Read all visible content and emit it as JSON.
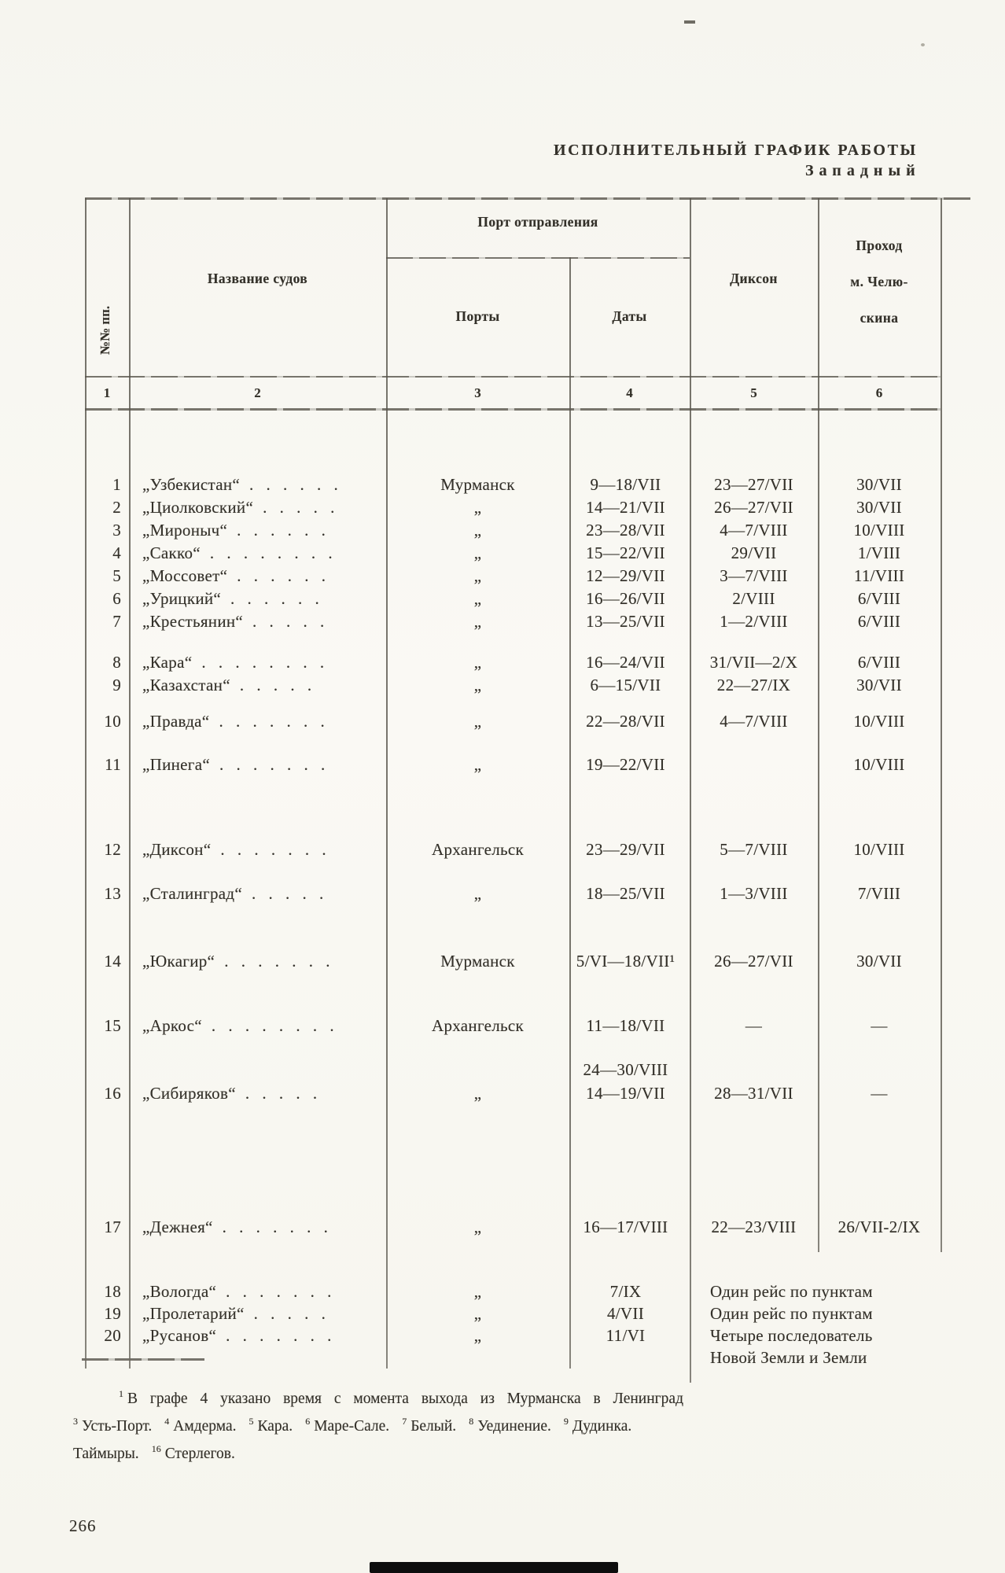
{
  "page": {
    "title_line1": "ИСПОЛНИТЕЛЬНЫЙ ГРАФИК РАБОТЫ",
    "title_line2": "Западный",
    "page_number": "266"
  },
  "table": {
    "header": {
      "rows_label": "№№ пп.",
      "ships": "Название судов",
      "departure_group": "Порт отправления",
      "ports": "Порты",
      "dates": "Даты",
      "dixon": "Диксон",
      "chelyuskin_lines": [
        "Проход",
        "м. Челю-",
        "скина"
      ],
      "column_numbers": [
        "1",
        "2",
        "3",
        "4",
        "5",
        "6"
      ]
    },
    "rows": [
      {
        "n": "1",
        "name": "„Узбекистан“",
        "dots": ". . . . . .",
        "port": "Мурманск",
        "date": "9—18/VII",
        "dixon": "23—27/VII",
        "chel": "30/VII"
      },
      {
        "n": "2",
        "name": "„Циолковский“",
        "dots": ". . . . .",
        "port": "„",
        "date": "14—21/VII",
        "dixon": "26—27/VII",
        "chel": "30/VII"
      },
      {
        "n": "3",
        "name": "„Мироныч“",
        "dots": ". . . . . .",
        "port": "„",
        "date": "23—28/VII",
        "dixon": "4—7/VIII",
        "chel": "10/VIII"
      },
      {
        "n": "4",
        "name": "„Сакко“",
        "dots": ". . . . . . . .",
        "port": "„",
        "date": "15—22/VII",
        "dixon": "29/VII",
        "chel": "1/VIII"
      },
      {
        "n": "5",
        "name": "„Моссовет“",
        "dots": ". . . . . .",
        "port": "„",
        "date": "12—29/VII",
        "dixon": "3—7/VIII",
        "chel": "11/VIII"
      },
      {
        "n": "6",
        "name": "„Урицкий“",
        "dots": ". . . . . .",
        "port": "„",
        "date": "16—26/VII",
        "dixon": "2/VIII",
        "chel": "6/VIII"
      },
      {
        "n": "7",
        "name": "„Крестьянин“",
        "dots": ". . . . .",
        "port": "„",
        "date": "13—25/VII",
        "dixon": "1—2/VIII",
        "chel": "6/VIII"
      },
      {
        "n": "8",
        "name": "„Кара“",
        "dots": ". . . . . . . .",
        "port": "„",
        "date": "16—24/VII",
        "dixon": "31/VII—2/X",
        "chel": "6/VIII"
      },
      {
        "n": "9",
        "name": "„Казахстан“",
        "dots": ". . . . .",
        "port": "„",
        "date": "6—15/VII",
        "dixon": "22—27/IX",
        "chel": "30/VII"
      },
      {
        "n": "10",
        "name": "„Правда“",
        "dots": ". . . . . . .",
        "port": "„",
        "date": "22—28/VII",
        "dixon": "4—7/VIII",
        "chel": "10/VIII"
      },
      {
        "n": "11",
        "name": "„Пинега“",
        "dots": ". . . . . . .",
        "port": "„",
        "date": "19—22/VII",
        "dixon": "",
        "chel": "10/VIII"
      },
      {
        "n": "12",
        "name": "„Диксон“",
        "dots": ". . . . . . .",
        "port": "Архангельск",
        "date": "23—29/VII",
        "dixon": "5—7/VIII",
        "chel": "10/VIII"
      },
      {
        "n": "13",
        "name": "„Сталинград“",
        "dots": ". . . . .",
        "port": "„",
        "date": "18—25/VII",
        "dixon": "1—3/VIII",
        "chel": "7/VIII"
      },
      {
        "n": "14",
        "name": "„Юкагир“",
        "dots": ". . . . . . .",
        "port": "Мурманск",
        "date": "5/VI—18/VII¹",
        "dixon": "26—27/VII",
        "chel": "30/VII"
      },
      {
        "n": "15",
        "name": "„Аркос“",
        "dots": ". . . . . . . .",
        "port": "Архангельск",
        "date": "11—18/VII",
        "date2": "24—30/VIII",
        "dixon": "—",
        "chel": "—"
      },
      {
        "n": "16",
        "name": "„Сибиряков“",
        "dots": ". . . . .",
        "port": "„",
        "date": "14—19/VII",
        "dixon": "28—31/VII",
        "chel": "—"
      },
      {
        "n": "17",
        "name": "„Дежнея“",
        "dots": ". . . . . . .",
        "port": "„",
        "date": "16—17/VIII",
        "dixon": "22—23/VIII",
        "chel": "26/VII-2/IX"
      },
      {
        "n": "18",
        "name": "„Вологда“",
        "dots": ". . . . . . .",
        "port": "„",
        "date": "7/IX",
        "note": "Один рейс по пунктам"
      },
      {
        "n": "19",
        "name": "„Пролетарий“",
        "dots": ". . . . .",
        "port": "„",
        "date": "4/VII",
        "note": "Один рейс по пунктам"
      },
      {
        "n": "20",
        "name": "„Русанов“",
        "dots": ". . . . . . .",
        "port": "„",
        "date": "11/VI",
        "note": "Четыре последователь",
        "note2": "Новой Земли и Земли"
      }
    ]
  },
  "footnote": {
    "lines": [
      {
        "segments": [
          {
            "sup": "1"
          },
          {
            "text": "В графе 4 указано время с момента выхода из Мурманска в Ленинград"
          }
        ]
      },
      {
        "segments": [
          {
            "sup": "3"
          },
          {
            "text": "Усть-Порт."
          },
          {
            "sup": "4"
          },
          {
            "text": "Амдерма."
          },
          {
            "sup": "5"
          },
          {
            "text": "Кара."
          },
          {
            "sup": "6"
          },
          {
            "text": "Маре-Сале."
          },
          {
            "sup": "7"
          },
          {
            "text": "Белый."
          },
          {
            "sup": "8"
          },
          {
            "text": "Уединение."
          },
          {
            "sup": "9"
          },
          {
            "text": "Дудинка."
          }
        ]
      },
      {
        "segments": [
          {
            "text": "Таймыры."
          },
          {
            "sup": "16"
          },
          {
            "text": "Стерлегов."
          }
        ]
      }
    ]
  }
}
